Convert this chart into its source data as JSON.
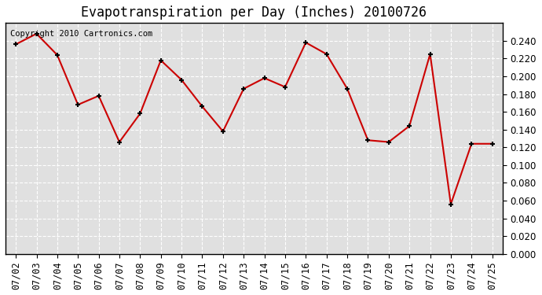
{
  "title": "Evapotranspiration per Day (Inches) 20100726",
  "copyright_text": "Copyright 2010 Cartronics.com",
  "dates": [
    "07/02",
    "07/03",
    "07/04",
    "07/05",
    "07/06",
    "07/07",
    "07/08",
    "07/09",
    "07/10",
    "07/11",
    "07/12",
    "07/13",
    "07/14",
    "07/15",
    "07/16",
    "07/17",
    "07/18",
    "07/19",
    "07/20",
    "07/21",
    "07/22",
    "07/23",
    "07/24",
    "07/25"
  ],
  "values": [
    0.236,
    0.248,
    0.224,
    0.168,
    0.178,
    0.126,
    0.158,
    0.218,
    0.196,
    0.166,
    0.138,
    0.186,
    0.198,
    0.188,
    0.238,
    0.225,
    0.186,
    0.128,
    0.126,
    0.144,
    0.225,
    0.056,
    0.124,
    0.124
  ],
  "line_color": "#cc0000",
  "marker_color": "#000000",
  "background_color": "#ffffff",
  "plot_background_color": "#e0e0e0",
  "grid_color": "#ffffff",
  "ylim": [
    0.0,
    0.26
  ],
  "yticks": [
    0.0,
    0.02,
    0.04,
    0.06,
    0.08,
    0.1,
    0.12,
    0.14,
    0.16,
    0.18,
    0.2,
    0.22,
    0.24
  ],
  "title_fontsize": 12,
  "tick_fontsize": 8.5,
  "copyright_fontsize": 7.5
}
